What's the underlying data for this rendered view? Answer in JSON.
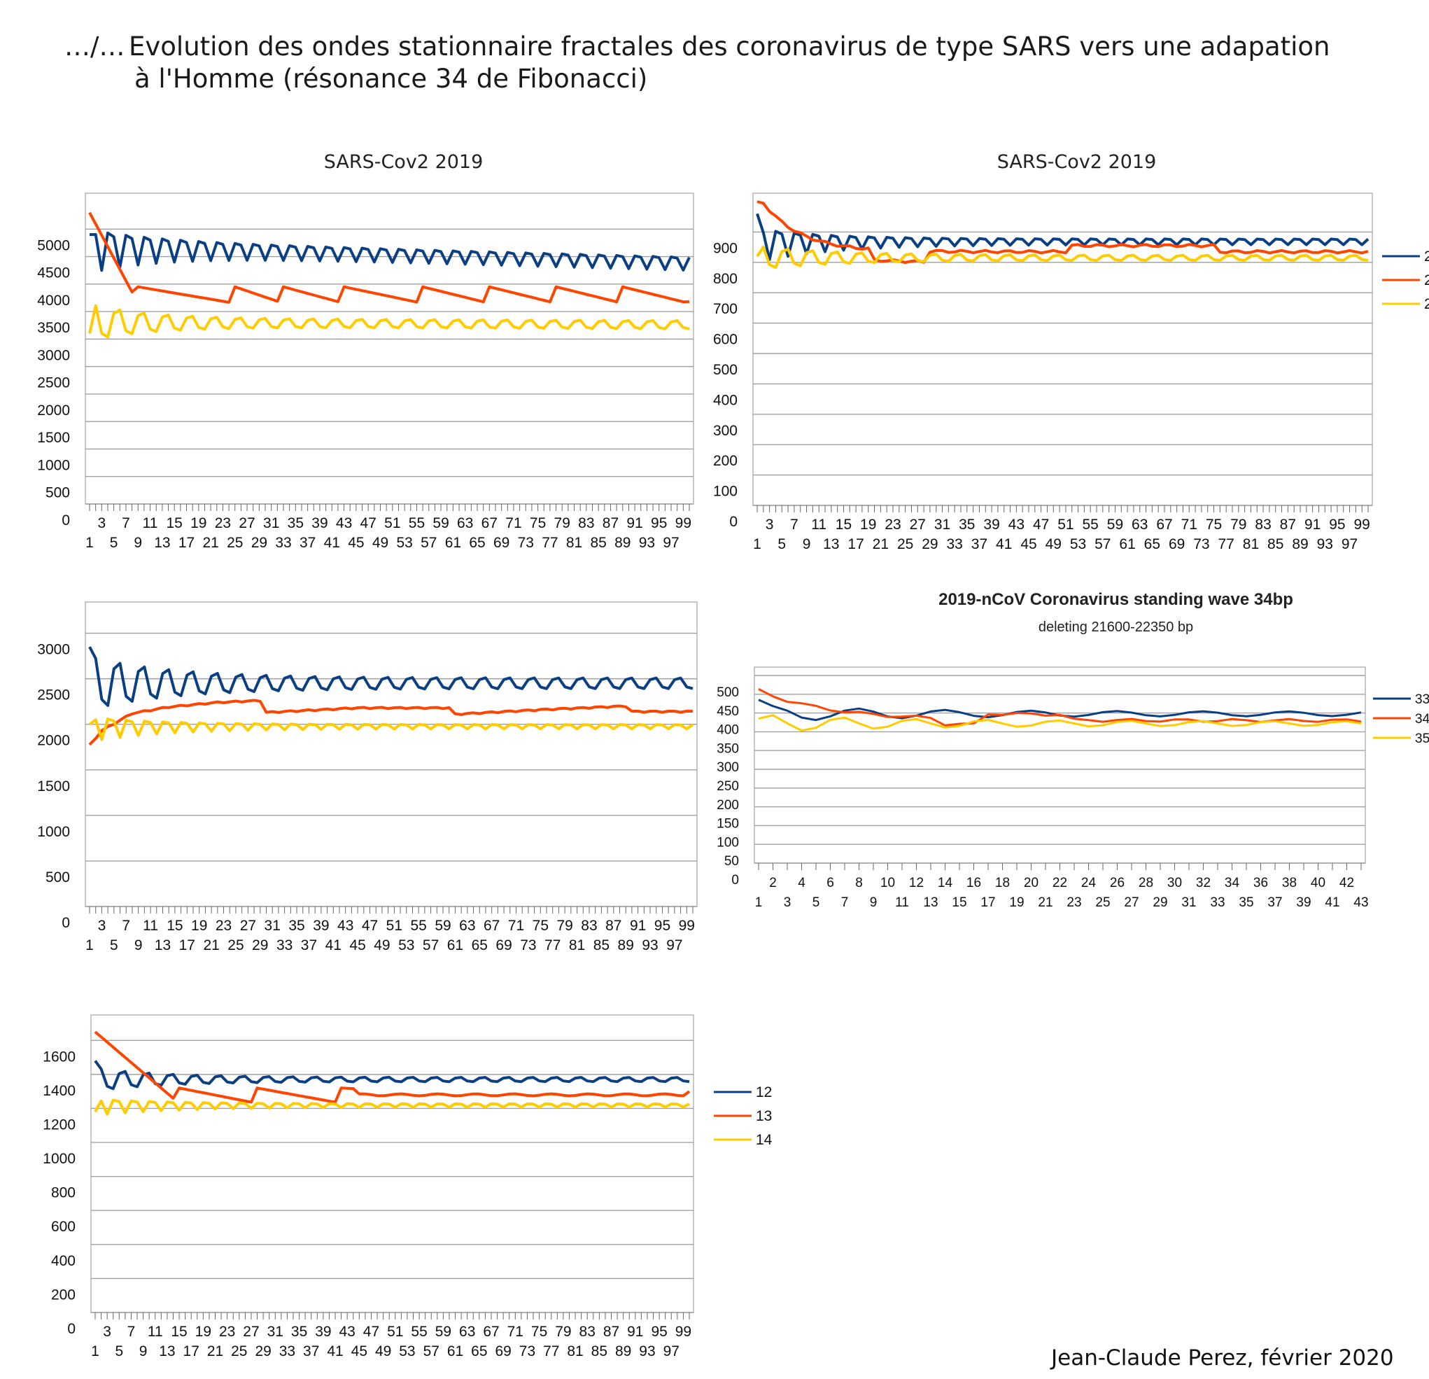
{
  "header": {
    "prefix": "…/…",
    "title_line1": "Evolution des ondes stationnaire fractales des coronavirus de type SARS vers une adapation",
    "title_line2": "à l'Homme (résonance 34 de Fibonacci)"
  },
  "footer": {
    "signature": "Jean-Claude Perez, février 2020"
  },
  "colors": {
    "blue": "#0b3f84",
    "red": "#ff4500",
    "yellow": "#ffcc00",
    "grid": "#9a9a9a"
  },
  "chart_data": [
    {
      "id": "c1",
      "type": "line",
      "title": "SARS-Cov2 2019",
      "subtitle": "",
      "x_start": 1,
      "x_end": 100,
      "y_ticks": [
        "5000",
        "4500",
        "4000",
        "3500",
        "3000",
        "2500",
        "2000",
        "1500",
        "1000",
        "500",
        "0"
      ],
      "ylim": [
        0,
        5500
      ],
      "legend": [],
      "series": [
        {
          "color": "blue",
          "shape": "fade",
          "start": 4900,
          "level": 4700,
          "amp_start": 500,
          "amp_end": 150,
          "period": 3,
          "decay": 12,
          "drift": -300
        },
        {
          "color": "red",
          "shape": "saw",
          "start": 5300,
          "peak": 3950,
          "trough": 3650,
          "peaks": [
            9,
            25,
            33,
            43,
            56,
            67,
            78,
            89
          ],
          "end": 3680
        },
        {
          "color": "yellow",
          "shape": "fade",
          "start": 3100,
          "level": 3300,
          "amp_start": 400,
          "amp_end": 90,
          "period": 4,
          "decay": 10,
          "drift": -40
        }
      ]
    },
    {
      "id": "c2",
      "type": "line",
      "title": "SARS-Cov2 2019",
      "subtitle": "",
      "x_start": 1,
      "x_end": 100,
      "y_ticks": [
        "900",
        "800",
        "700",
        "600",
        "500",
        "400",
        "300",
        "200",
        "100",
        "0"
      ],
      "ylim": [
        0,
        1000
      ],
      "legend": [
        "2",
        "2",
        "2"
      ],
      "series": [
        {
          "color": "blue",
          "shape": "fade",
          "start": 960,
          "level": 870,
          "amp_start": 70,
          "amp_end": 12,
          "period": 3,
          "decay": 12,
          "drift": 0
        },
        {
          "color": "red",
          "shape": "curve",
          "start": 1025,
          "level": 835,
          "tau": 6,
          "dip_from": 20,
          "dip_to": 28,
          "dip": -35,
          "bump_from": 52,
          "bump_to": 75,
          "bump": 20
        },
        {
          "color": "yellow",
          "shape": "fade",
          "start": 820,
          "level": 815,
          "amp_start": 45,
          "amp_end": 10,
          "period": 4,
          "decay": 14,
          "drift": 0
        }
      ]
    },
    {
      "id": "c3",
      "type": "line",
      "title": "",
      "subtitle": "",
      "x_start": 1,
      "x_end": 100,
      "y_ticks": [
        "3000",
        "2500",
        "2000",
        "1500",
        "1000",
        "500",
        "0"
      ],
      "ylim": [
        0,
        3250
      ],
      "legend": [],
      "series": [
        {
          "color": "blue",
          "shape": "fade",
          "start": 2850,
          "level": 2450,
          "amp_start": 350,
          "amp_end": 70,
          "period": 4,
          "decay": 14,
          "drift": 0
        },
        {
          "color": "red",
          "shape": "steps",
          "start": 1770,
          "points": [
            [
              1,
              1770
            ],
            [
              3,
              1930
            ],
            [
              8,
              2120
            ],
            [
              14,
              2190
            ],
            [
              22,
              2240
            ],
            [
              29,
              2260
            ],
            [
              30,
              2130
            ],
            [
              45,
              2180
            ],
            [
              60,
              2180
            ],
            [
              61,
              2110
            ],
            [
              75,
              2160
            ],
            [
              89,
              2200
            ],
            [
              90,
              2140
            ],
            [
              100,
              2140
            ]
          ]
        },
        {
          "color": "yellow",
          "shape": "fade",
          "start": 2000,
          "level": 1980,
          "amp_start": 170,
          "amp_end": 30,
          "period": 3,
          "decay": 12,
          "drift": 0
        }
      ]
    },
    {
      "id": "c4",
      "type": "line",
      "title": "2019-nCoV Coronavirus standing wave 34bp",
      "subtitle": "deleting 21600-22350 bp",
      "x_start": 1,
      "x_end": 43,
      "y_ticks": [
        "500",
        "450",
        "400",
        "350",
        "300",
        "250",
        "200",
        "150",
        "100",
        "50",
        "0"
      ],
      "ylim": [
        0,
        500
      ],
      "legend": [
        "33",
        "34",
        "35"
      ],
      "series": [
        {
          "color": "blue",
          "shape": "fade",
          "start": 435,
          "level": 398,
          "amp_start": 22,
          "amp_end": 6,
          "period": 6,
          "decay": 10,
          "drift": 0
        },
        {
          "color": "red",
          "shape": "curve",
          "start": 460,
          "level": 380,
          "tau": 5,
          "dip_from": 14,
          "dip_to": 16,
          "dip": -15,
          "bump_from": 17,
          "bump_to": 22,
          "bump": 15
        },
        {
          "color": "yellow",
          "shape": "fade",
          "start": 385,
          "level": 372,
          "amp_start": 25,
          "amp_end": 6,
          "period": 5,
          "decay": 10,
          "drift": 0
        }
      ]
    },
    {
      "id": "c5",
      "type": "line",
      "title": "",
      "subtitle": "",
      "x_start": 1,
      "x_end": 100,
      "y_ticks": [
        "1600",
        "1400",
        "1200",
        "1000",
        "800",
        "600",
        "400",
        "200",
        "0"
      ],
      "ylim": [
        0,
        1700
      ],
      "legend": [
        "12",
        "13",
        "14"
      ],
      "series": [
        {
          "color": "blue",
          "shape": "fade",
          "start": 1480,
          "level": 1370,
          "amp_start": 80,
          "amp_end": 15,
          "period": 4,
          "decay": 12,
          "drift": 0
        },
        {
          "color": "red",
          "shape": "saw",
          "start": 1650,
          "peak": 1320,
          "trough": 1230,
          "peaks": [
            15,
            28,
            42
          ],
          "end": 1300,
          "flat_after": 44,
          "flat_level": 1280
        },
        {
          "color": "yellow",
          "shape": "fade",
          "start": 1180,
          "level": 1220,
          "amp_start": 60,
          "amp_end": 12,
          "period": 3,
          "decay": 14,
          "drift": 0
        }
      ]
    }
  ]
}
